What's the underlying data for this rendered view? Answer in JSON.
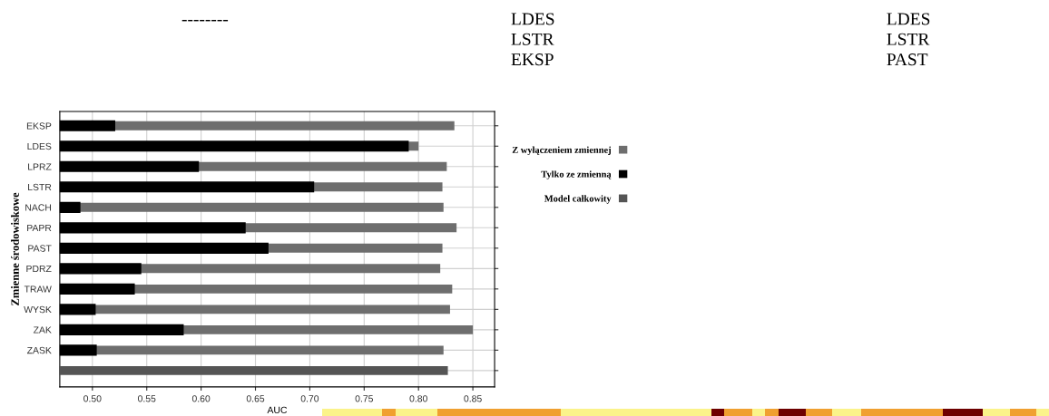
{
  "chart_data": {
    "type": "bar",
    "orientation": "horizontal",
    "xlabel": "AUC",
    "ylabel": "Zmienne środowiskowe",
    "categories": [
      "EKSP",
      "LDES",
      "LPRZ",
      "LSTR",
      "NACH",
      "PAPR",
      "PAST",
      "PDRZ",
      "TRAW",
      "WYSK",
      "ZAK",
      "ZASK",
      null
    ],
    "series": [
      {
        "name": "Z wyłączeniem zmiennej",
        "color": "#6e6e6e",
        "values": [
          0.833,
          0.8,
          0.826,
          0.822,
          0.823,
          0.835,
          0.822,
          0.82,
          0.831,
          0.829,
          0.85,
          0.823,
          null
        ]
      },
      {
        "name": "Tylko ze zmienną",
        "color": "#000000",
        "values": [
          0.521,
          0.791,
          0.598,
          0.704,
          0.489,
          0.641,
          0.662,
          0.545,
          0.539,
          0.503,
          0.584,
          0.504,
          null
        ]
      },
      {
        "name": "Model całkowity",
        "color": "#555555",
        "values": [
          null,
          null,
          null,
          null,
          null,
          null,
          null,
          null,
          null,
          null,
          null,
          null,
          0.827
        ]
      }
    ],
    "xlim": [
      0.47,
      0.87
    ],
    "xticks": [
      {
        "value": 0.5,
        "label": "0.50"
      },
      {
        "value": 0.55,
        "label": "0.55"
      },
      {
        "value": 0.6,
        "label": "0.60"
      },
      {
        "value": 0.65,
        "label": "0.65"
      },
      {
        "value": 0.7,
        "label": "0.70"
      },
      {
        "value": 0.75,
        "label": "0.75"
      },
      {
        "value": 0.8,
        "label": "0.80"
      },
      {
        "value": 0.85,
        "label": "0.85"
      }
    ],
    "grid": true,
    "legend": "right",
    "annotations": [
      "--------",
      "LDES\nLSTR\nEKSP",
      "LDES\nLSTR\nPAST"
    ]
  }
}
